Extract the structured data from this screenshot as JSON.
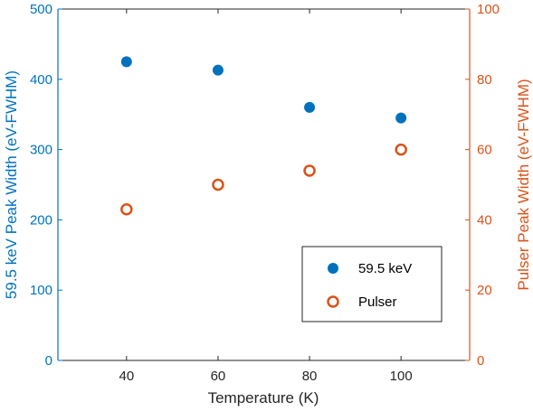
{
  "chart_data": {
    "type": "scatter",
    "x": [
      40,
      60,
      80,
      100
    ],
    "xlabel": "Temperature (K)",
    "xlim": [
      25,
      115
    ],
    "xticks": [
      40,
      60,
      80,
      100
    ],
    "y_left": {
      "label": "59.5 keV Peak Width (eV-FWHM)",
      "lim": [
        0,
        500
      ],
      "ticks": [
        0,
        100,
        200,
        300,
        400,
        500
      ],
      "color": "#0072BD"
    },
    "y_right": {
      "label": "Pulser Peak Width (eV-FWHM)",
      "lim": [
        0,
        100
      ],
      "ticks": [
        0,
        20,
        40,
        60,
        80,
        100
      ],
      "color": "#D95319"
    },
    "series": [
      {
        "name": "59.5 keV",
        "axis": "left",
        "marker": "filled-circle",
        "color": "#0072BD",
        "values": [
          425,
          413,
          360,
          345
        ]
      },
      {
        "name": "Pulser",
        "axis": "right",
        "marker": "open-circle",
        "color": "#D95319",
        "values": [
          43,
          50,
          54,
          60
        ]
      }
    ],
    "legend": {
      "position": "bottom-right"
    },
    "grid": false
  }
}
